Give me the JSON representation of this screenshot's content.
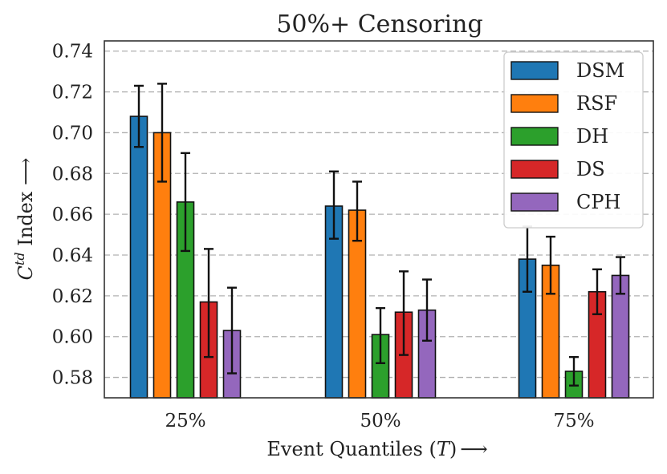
{
  "chart_data": {
    "type": "bar",
    "title": "50%+ Censoring",
    "xlabel_text": "Event Quantiles (",
    "xlabel_var": "T",
    "xlabel_close": ")",
    "xlabel_arrow": "⟶",
    "ylabel_C": "C",
    "ylabel_sup": "td",
    "ylabel_rest": " Index ⟶",
    "categories": [
      "25%",
      "50%",
      "75%"
    ],
    "ylim": [
      0.57,
      0.745
    ],
    "yticks": [
      0.58,
      0.6,
      0.62,
      0.64,
      0.66,
      0.68,
      0.7,
      0.72,
      0.74
    ],
    "ytick_labels": [
      "0.58",
      "0.60",
      "0.62",
      "0.64",
      "0.66",
      "0.68",
      "0.70",
      "0.72",
      "0.74"
    ],
    "grid": true,
    "legend_position": "top-right",
    "series": [
      {
        "name": "DSM",
        "color": "#1f77b4",
        "values": [
          0.708,
          0.664,
          0.638
        ],
        "err_low": [
          0.693,
          0.648,
          0.622
        ],
        "err_high": [
          0.723,
          0.681,
          0.654
        ]
      },
      {
        "name": "RSF",
        "color": "#ff7f0e",
        "values": [
          0.7,
          0.662,
          0.635
        ],
        "err_low": [
          0.676,
          0.647,
          0.621
        ],
        "err_high": [
          0.724,
          0.676,
          0.649
        ]
      },
      {
        "name": "DH",
        "color": "#2ca02c",
        "values": [
          0.666,
          0.601,
          0.583
        ],
        "err_low": [
          0.642,
          0.587,
          0.576
        ],
        "err_high": [
          0.69,
          0.614,
          0.59
        ]
      },
      {
        "name": "DS",
        "color": "#d62728",
        "values": [
          0.617,
          0.612,
          0.622
        ],
        "err_low": [
          0.59,
          0.591,
          0.611
        ],
        "err_high": [
          0.643,
          0.632,
          0.633
        ]
      },
      {
        "name": "CPH",
        "color": "#9467bd",
        "values": [
          0.603,
          0.613,
          0.63
        ],
        "err_low": [
          0.582,
          0.598,
          0.621
        ],
        "err_high": [
          0.624,
          0.628,
          0.639
        ]
      }
    ]
  }
}
